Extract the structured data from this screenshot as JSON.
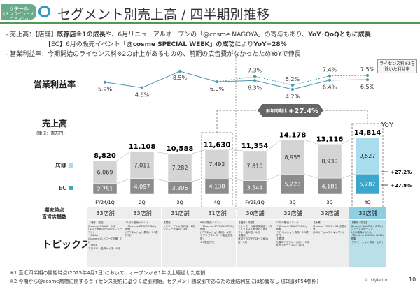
{
  "header": {
    "badge_line1": "リテール",
    "badge_line2": "(オンライン・オフライン)",
    "title": "セグメント別売上高 / 四半期別推移"
  },
  "bullets": [
    {
      "prefix": "- 売上高：【店舗】",
      "b1": "既存店※1の成長",
      "t1": "や、6月リニューアルオープンの「@cosme NAGOYA」の寄与もあり、",
      "b2": "YoY･QoQともに成長"
    },
    {
      "t0": "【EC】6月の販売イベント",
      "b1": "「@cosme SPECIAL WEEK」の成功",
      "t1": "により",
      "b2": "YoY+28%"
    },
    {
      "t0": "- 営業利益率：今期開始のライセンス料※2の計上があるものの、前期の広告費がなかったためYoYで伸長"
    }
  ],
  "labels": {
    "margin": "営業利益率",
    "sales": "売上高",
    "unit": "(単位：百万円)",
    "store_legend": "店舗",
    "ec_legend": "EC",
    "yoy": "YoY",
    "store_count": "期末時点\n直営店舗数",
    "topics": "トピックス",
    "note": "ライセンス料※2を除いた利益率",
    "callout_prefix": "前年同期比",
    "callout_value": "+27.4%"
  },
  "colors": {
    "store": "#d4d4d4",
    "ec": "#8c8c8c",
    "store_hl": "#a9dcec",
    "ec_hl": "#3ba7cc",
    "line": "#4a9aa8"
  },
  "chart_data": {
    "type": "bar",
    "categories": [
      "FY24/1Q",
      "2Q",
      "3Q",
      "4Q",
      "FY25/1Q",
      "2Q",
      "3Q",
      "4Q"
    ],
    "series": [
      {
        "name": "EC",
        "values": [
          2751,
          4097,
          3306,
          4138,
          3544,
          5223,
          4186,
          5287
        ]
      },
      {
        "name": "店舗",
        "values": [
          6069,
          7011,
          7282,
          7492,
          7810,
          8955,
          8930,
          9527
        ]
      }
    ],
    "totals": [
      "8,820",
      "11,108",
      "10,588",
      "11,630",
      "11,354",
      "14,178",
      "13,116",
      "14,814"
    ],
    "yoy": {
      "store": "+27.2%",
      "ec": "+27.8%"
    },
    "margin": [
      5.9,
      4.6,
      8.5,
      6.0,
      6.3,
      4.2,
      6.4,
      6.5
    ],
    "margin_ex_license": [
      null,
      null,
      null,
      6.0,
      7.3,
      5.2,
      7.4,
      7.5
    ]
  },
  "stores": [
    "33店舗",
    "33店舗",
    "31店舗",
    "31店舗",
    "30店舗",
    "32店舗",
    "32店舗",
    "32店舗"
  ],
  "topics": [
    "【増床・改装】\n@cosme OSAKA：9月\n(ルクア大阪店からのリニューアル)\n【M&A】\nCosmetic(シドニー7店舗：7月\n【閉店】\nアビタウン金沢ペイ店：8月",
    "12月の販売イベント\n「@cosme BEAUTY DAY」開催\n(プロモーション費用：1.1億万円)",
    "【閉店】\nシドニーアトレ松戸店：1月\nシドニー大森店：3月",
    "6月の販売イベント\n「@cosme SPECIAL WEEK」開催\n(プロモーション費用：ゼロ)\nアプリダウンロード促進広告費：\n1.5億百万円",
    "【増床・改装】\nイオンモール浦和美園店：7月\nアミュエスト博多店：8月\nアトレ亀戸店：9月\n【閉店】\n東京ソラマチらぼーと横浜店：8月",
    "12月の販売イベント\n「@cosme BEAUTY DAY」開催\n(プロモーション費用：3.5億万円)\n【開店】\n札幌ステラプレイス店：10月\n金沢フォーラス店：12月",
    "【休業】\n@cosme TOKYO：21日間休業\n(3/8リニューアルオープン)",
    "【増床・改装】\n@cosme NAGOYA：6/19リニューアルオープン\n6月の販売イベント\n「@cosme SPECIAL WEEK」開催\n(プロモーション費用：ゼロ)"
  ],
  "footnotes": [
    "※1 直近四半期の開始時点(2025年4月1日)において、オープンから1年以上経過した店舗",
    "※2 今期から@cosme商標に関するライセンス契約に基づく取引開始。セグメント間取引であるため連結利益には影響なし (詳細はP54参照)"
  ],
  "copyright": "© istyle Inc.",
  "page": "10"
}
